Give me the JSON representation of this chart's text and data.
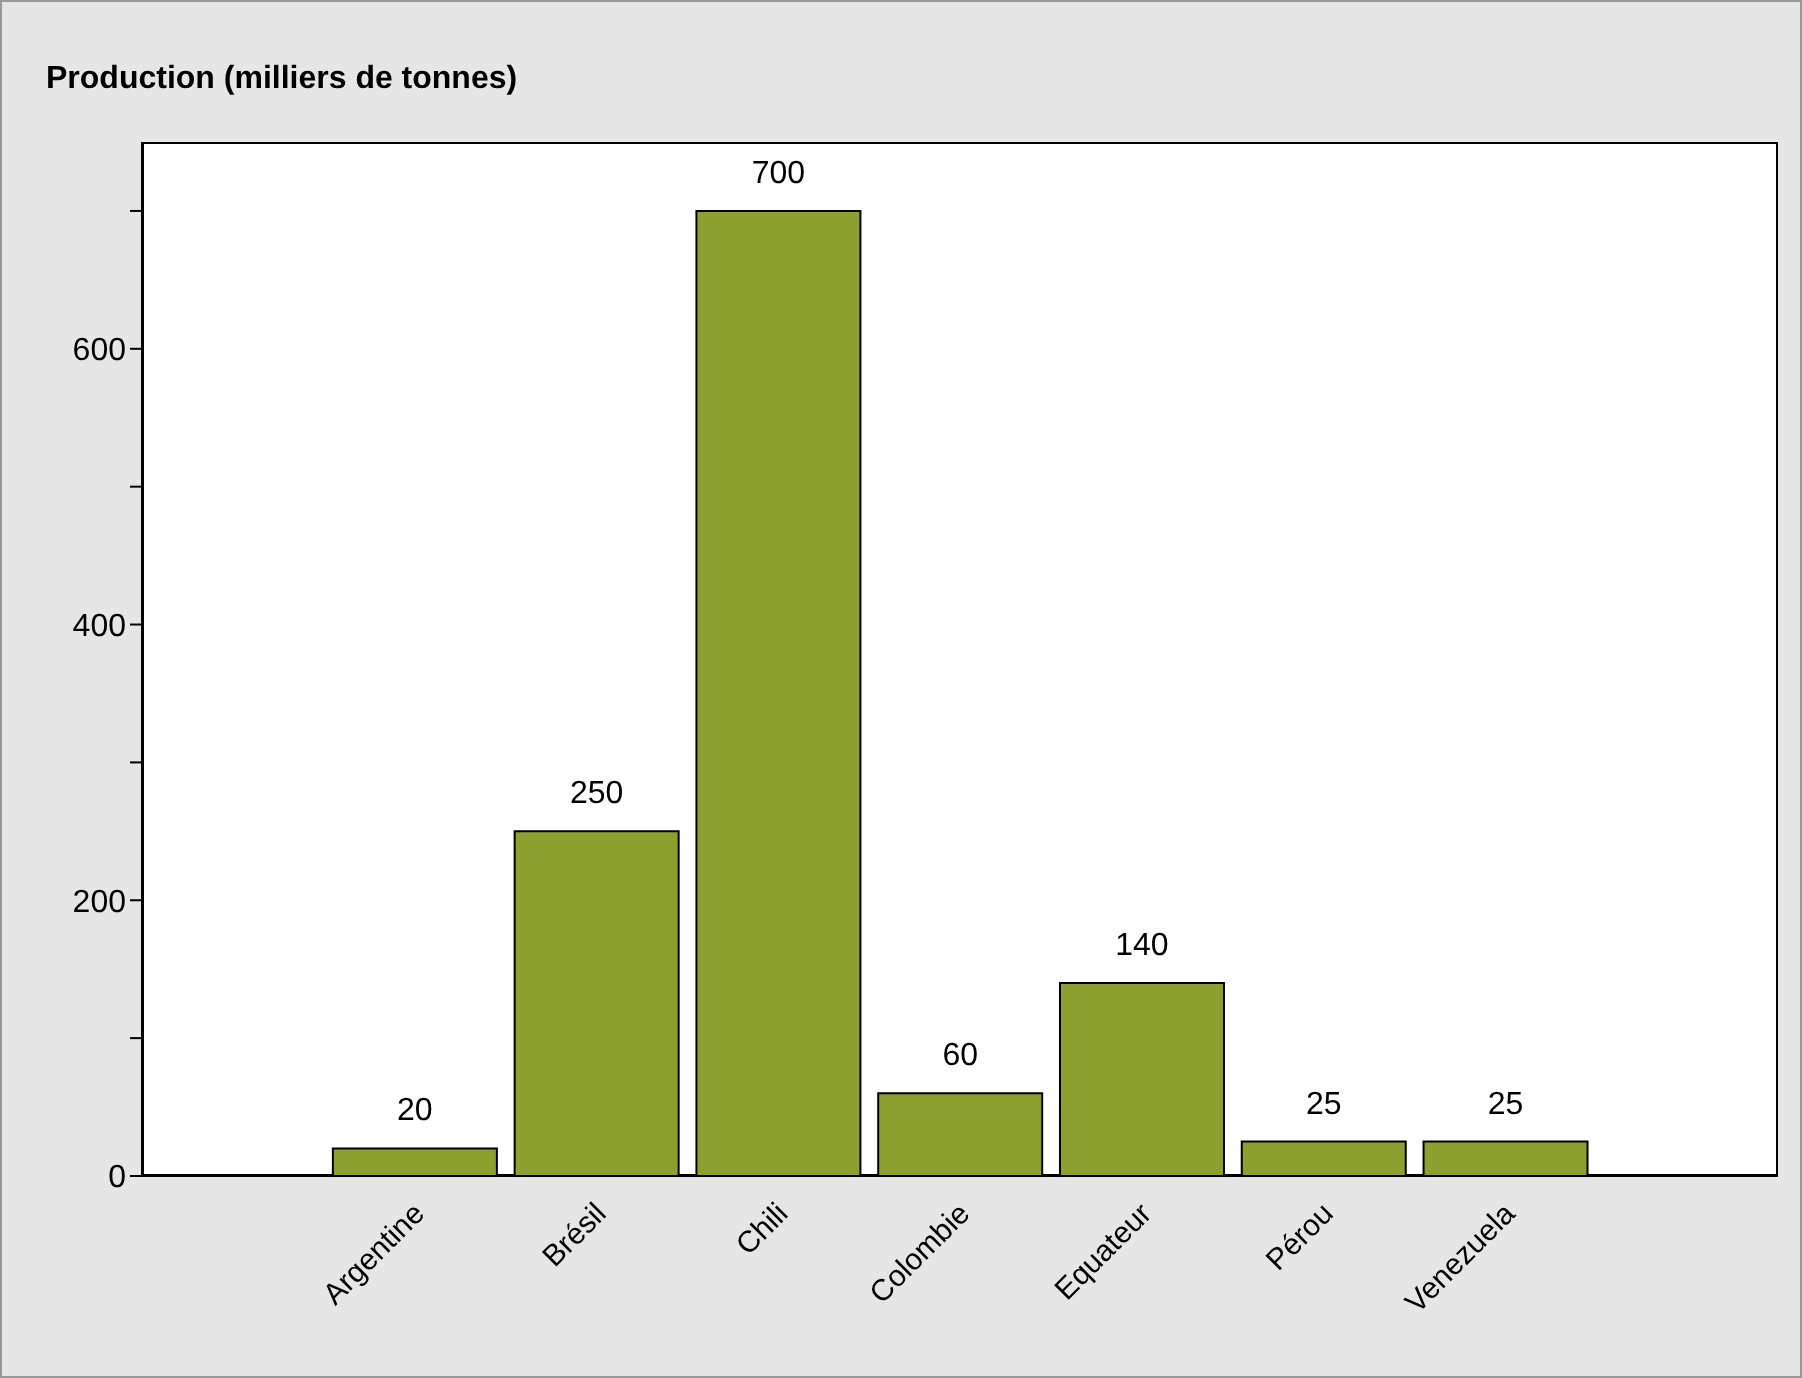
{
  "chart_data": {
    "type": "bar",
    "title": "Production (milliers de tonnes)",
    "categories": [
      null,
      "Argentine",
      "Brésil",
      "Chili",
      "Colombie",
      "Equateur",
      "Pérou",
      "Venezuela",
      null
    ],
    "values": [
      null,
      20,
      250,
      700,
      60,
      140,
      25,
      25,
      null
    ],
    "color": "#8ca030",
    "ylim": [
      0,
      750
    ],
    "yticks": [
      0,
      {
        "value": 100,
        "label": null
      },
      200,
      {
        "value": 300,
        "label": null
      },
      400,
      {
        "value": 500,
        "label": null
      },
      600,
      {
        "value": 700,
        "label": null
      }
    ],
    "data_labels": true
  }
}
